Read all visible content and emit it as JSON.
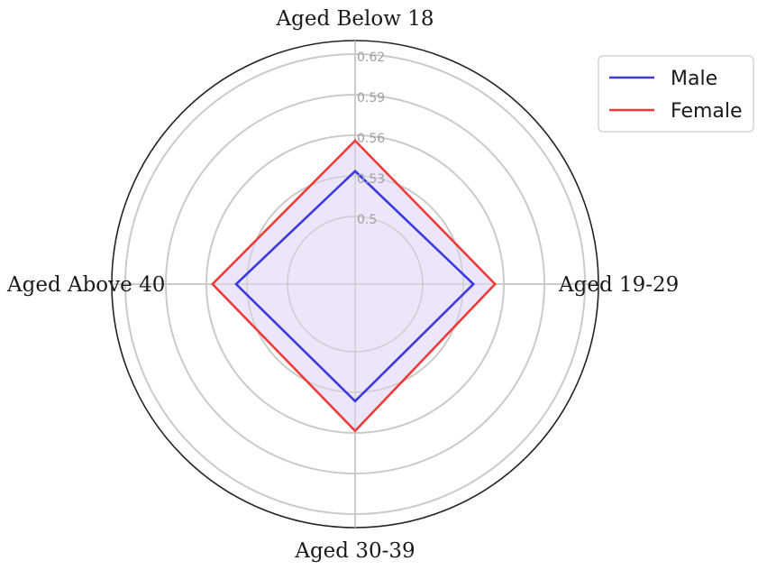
{
  "chart_data": {
    "type": "radar",
    "title": "",
    "categories": [
      "Aged Below 18",
      "Aged 19-29",
      "Aged 30-39",
      "Aged Above 40"
    ],
    "radial_ticks": [
      "0.5",
      "0.53",
      "0.56",
      "0.59",
      "0.62"
    ],
    "rlim": [
      0.45,
      0.63
    ],
    "grid": true,
    "fill_color": "#ede6fa",
    "legend_position": "top-right",
    "series": [
      {
        "name": "Male",
        "color": "#3a3ae0",
        "values": [
          0.5335,
          0.5375,
          0.5365,
          0.538
        ]
      },
      {
        "name": "Female",
        "color": "#ee3b3b",
        "values": [
          0.556,
          0.5535,
          0.5585,
          0.5555
        ]
      }
    ]
  }
}
